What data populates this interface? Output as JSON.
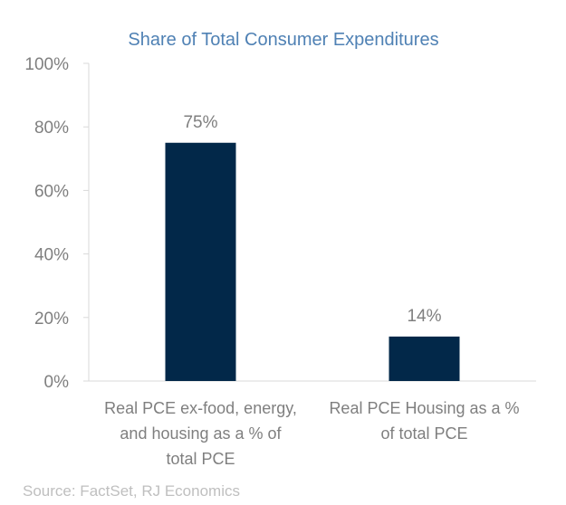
{
  "chart_data": {
    "type": "bar",
    "title": "Share of Total Consumer Expenditures",
    "categories": [
      [
        "Real PCE ex-food, energy,",
        "and housing as a % of",
        "total PCE"
      ],
      [
        "Real PCE Housing as a %",
        "of total PCE"
      ]
    ],
    "values": [
      75,
      14
    ],
    "data_labels": [
      "75%",
      "14%"
    ],
    "ylim": [
      0,
      100
    ],
    "yticks": [
      0,
      20,
      40,
      60,
      80,
      100
    ],
    "ytick_labels": [
      "0%",
      "20%",
      "40%",
      "60%",
      "80%",
      "100%"
    ],
    "grid": false,
    "legend": "none",
    "colors": {
      "bar": "#022849",
      "title": "#4f81b4",
      "text": "#7f7f7f",
      "axis": "#d9d9d9",
      "source": "#bfbfbf"
    }
  },
  "source": "Source: FactSet, RJ Economics"
}
